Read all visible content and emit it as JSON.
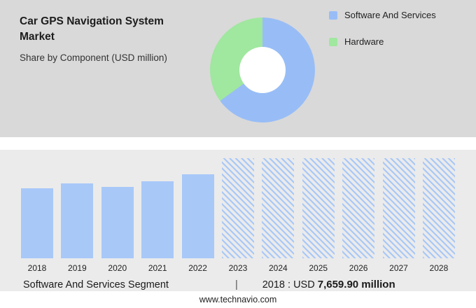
{
  "header": {
    "title": "Car GPS Navigation System Market",
    "subtitle": "Share by Component (USD million)"
  },
  "legend": {
    "items": [
      {
        "label": "Software And Services",
        "color": "#98bdf6"
      },
      {
        "label": "Hardware",
        "color": "#a0e79f"
      }
    ]
  },
  "chart_data": [
    {
      "type": "pie",
      "donut": true,
      "title": "Share by Component (USD million)",
      "labels": [
        "Software And Services",
        "Hardware"
      ],
      "values_pct": [
        65,
        35
      ],
      "colors": [
        "#98bdf6",
        "#a0e79f"
      ],
      "legend_position": "right"
    },
    {
      "type": "bar",
      "unit": "USD million",
      "categories": [
        "2018",
        "2019",
        "2020",
        "2021",
        "2022",
        "2023",
        "2024",
        "2025",
        "2026",
        "2027",
        "2028"
      ],
      "bar_color": "#a8c8f8",
      "bars": [
        {
          "year": "2018",
          "height_pct": 70,
          "hatched": false
        },
        {
          "year": "2019",
          "height_pct": 75,
          "hatched": false
        },
        {
          "year": "2020",
          "height_pct": 71,
          "hatched": false
        },
        {
          "year": "2021",
          "height_pct": 77,
          "hatched": false
        },
        {
          "year": "2022",
          "height_pct": 84,
          "hatched": false
        },
        {
          "year": "2023",
          "height_pct": 100,
          "hatched": true
        },
        {
          "year": "2024",
          "height_pct": 100,
          "hatched": true
        },
        {
          "year": "2025",
          "height_pct": 100,
          "hatched": true
        },
        {
          "year": "2026",
          "height_pct": 100,
          "hatched": true
        },
        {
          "year": "2027",
          "height_pct": 100,
          "hatched": true
        },
        {
          "year": "2028",
          "height_pct": 100,
          "hatched": true
        }
      ],
      "known_values": {
        "2018": "7,659.90"
      },
      "note": "Solid bars 2018-2022 are historical; hatched bars 2023-2028 are forecast"
    }
  ],
  "caption": {
    "segment_label": "Software And Services Segment",
    "separator": "|",
    "value_prefix": "2018 : USD",
    "value_bold": "7,659.90 million"
  },
  "footer": {
    "url": "www.technavio.com"
  }
}
